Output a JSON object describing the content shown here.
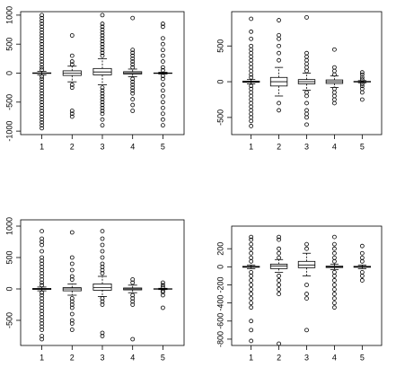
{
  "chart_data": [
    {
      "type": "boxplot",
      "categories": [
        "1",
        "2",
        "3",
        "4",
        "5"
      ],
      "ylim": [
        -1060,
        1060
      ],
      "yticks": [
        -1000,
        -500,
        0,
        500,
        1000
      ],
      "boxes": [
        {
          "whislo": -30,
          "q1": -5,
          "med": 0,
          "q3": 5,
          "whishi": 30,
          "out": [
            -950,
            -900,
            -850,
            -800,
            -750,
            -700,
            -650,
            -600,
            -550,
            -500,
            -450,
            -400,
            -350,
            -300,
            -250,
            -200,
            -150,
            -100,
            -60,
            60,
            100,
            150,
            200,
            250,
            300,
            350,
            400,
            450,
            500,
            550,
            600,
            650,
            700,
            750,
            800,
            850,
            900,
            950,
            1000
          ]
        },
        {
          "whislo": -150,
          "q1": -40,
          "med": 0,
          "q3": 40,
          "whishi": 120,
          "out": [
            -750,
            -700,
            -650,
            -250,
            -200,
            150,
            200,
            300,
            650
          ]
        },
        {
          "whislo": -200,
          "q1": -30,
          "med": 20,
          "q3": 80,
          "whishi": 250,
          "out": [
            -900,
            -800,
            -700,
            -650,
            -600,
            -550,
            -500,
            -450,
            -400,
            -350,
            -300,
            -250,
            300,
            350,
            400,
            450,
            500,
            550,
            600,
            650,
            700,
            750,
            800,
            850,
            1000
          ]
        },
        {
          "whislo": -60,
          "q1": -15,
          "med": 5,
          "q3": 25,
          "whishi": 70,
          "out": [
            -650,
            -550,
            -450,
            -350,
            -300,
            -250,
            -200,
            -150,
            -100,
            100,
            150,
            200,
            250,
            300,
            350,
            400,
            950
          ]
        },
        {
          "whislo": -15,
          "q1": -3,
          "med": 0,
          "q3": 3,
          "whishi": 15,
          "out": [
            -900,
            -800,
            -700,
            -600,
            -500,
            -400,
            -300,
            -200,
            -100,
            -50,
            50,
            100,
            200,
            300,
            400,
            500,
            600,
            800,
            850
          ]
        }
      ]
    },
    {
      "type": "boxplot",
      "categories": [
        "1",
        "2",
        "3",
        "4",
        "5"
      ],
      "ylim": [
        -740,
        980
      ],
      "yticks": [
        -500,
        0,
        500
      ],
      "boxes": [
        {
          "whislo": -30,
          "q1": -8,
          "med": 0,
          "q3": 8,
          "whishi": 30,
          "out": [
            -620,
            -550,
            -500,
            -450,
            -400,
            -350,
            -300,
            -250,
            -200,
            -150,
            -100,
            -60,
            60,
            100,
            150,
            200,
            250,
            300,
            350,
            400,
            450,
            500,
            600,
            700,
            880
          ]
        },
        {
          "whislo": -200,
          "q1": -60,
          "med": 0,
          "q3": 60,
          "whishi": 200,
          "out": [
            -400,
            -300,
            300,
            400,
            500,
            600,
            650,
            860
          ]
        },
        {
          "whislo": -120,
          "q1": -30,
          "med": 0,
          "q3": 30,
          "whishi": 120,
          "out": [
            -600,
            -500,
            -450,
            -400,
            -300,
            -200,
            -150,
            150,
            200,
            250,
            300,
            350,
            400,
            900
          ]
        },
        {
          "whislo": -80,
          "q1": -25,
          "med": 0,
          "q3": 25,
          "whishi": 80,
          "out": [
            -300,
            -250,
            -200,
            -150,
            -100,
            100,
            150,
            200,
            450
          ]
        },
        {
          "whislo": -15,
          "q1": -4,
          "med": 0,
          "q3": 4,
          "whishi": 15,
          "out": [
            -250,
            -150,
            -100,
            -60,
            -30,
            30,
            60,
            100,
            130
          ]
        }
      ]
    },
    {
      "type": "boxplot",
      "categories": [
        "1",
        "2",
        "3",
        "4",
        "5"
      ],
      "ylim": [
        -900,
        1100
      ],
      "yticks": [
        -500,
        0,
        500,
        1000
      ],
      "boxes": [
        {
          "whislo": -30,
          "q1": -8,
          "med": 0,
          "q3": 8,
          "whishi": 30,
          "out": [
            -800,
            -750,
            -650,
            -600,
            -550,
            -500,
            -450,
            -400,
            -350,
            -300,
            -250,
            -200,
            -150,
            -100,
            -60,
            60,
            100,
            150,
            200,
            250,
            300,
            350,
            400,
            450,
            500,
            600,
            700,
            750,
            800,
            920
          ]
        },
        {
          "whislo": -100,
          "q1": -30,
          "med": 0,
          "q3": 20,
          "whishi": 80,
          "out": [
            -650,
            -550,
            -500,
            -400,
            -300,
            -250,
            -200,
            -150,
            150,
            200,
            300,
            400,
            500,
            900
          ]
        },
        {
          "whislo": -120,
          "q1": -20,
          "med": 20,
          "q3": 80,
          "whishi": 200,
          "out": [
            -750,
            -700,
            -250,
            -200,
            -150,
            250,
            300,
            350,
            400,
            500,
            600,
            700,
            800,
            920
          ]
        },
        {
          "whislo": -60,
          "q1": -15,
          "med": 0,
          "q3": 15,
          "whishi": 60,
          "out": [
            -800,
            -250,
            -200,
            -150,
            -100,
            100,
            150
          ]
        },
        {
          "whislo": -10,
          "q1": -3,
          "med": 0,
          "q3": 3,
          "whishi": 10,
          "out": [
            -300,
            -100,
            -50,
            -30,
            30,
            60,
            100
          ]
        }
      ]
    },
    {
      "type": "boxplot",
      "categories": [
        "1",
        "2",
        "3",
        "4",
        "5"
      ],
      "ylim": [
        -870,
        450
      ],
      "yticks": [
        -800,
        -600,
        -400,
        -200,
        0,
        200
      ],
      "boxes": [
        {
          "whislo": -20,
          "q1": -5,
          "med": 0,
          "q3": 5,
          "whishi": 20,
          "out": [
            -820,
            -700,
            -600,
            -450,
            -400,
            -350,
            -300,
            -250,
            -200,
            -150,
            -100,
            -60,
            60,
            100,
            150,
            200,
            250,
            300,
            330
          ]
        },
        {
          "whislo": -60,
          "q1": -20,
          "med": 10,
          "q3": 30,
          "whishi": 80,
          "out": [
            -850,
            -300,
            -250,
            -200,
            -150,
            -100,
            100,
            150,
            200,
            300,
            330
          ]
        },
        {
          "whislo": -100,
          "q1": -10,
          "med": 20,
          "q3": 60,
          "whishi": 150,
          "out": [
            -700,
            -350,
            -300,
            -200,
            200,
            250
          ]
        },
        {
          "whislo": -30,
          "q1": -8,
          "med": 0,
          "q3": 8,
          "whishi": 30,
          "out": [
            -450,
            -400,
            -350,
            -300,
            -250,
            -200,
            -150,
            -100,
            -60,
            60,
            100,
            150,
            200,
            250,
            330
          ]
        },
        {
          "whislo": -20,
          "q1": -5,
          "med": 0,
          "q3": 5,
          "whishi": 20,
          "out": [
            -150,
            -100,
            -60,
            60,
            100,
            150,
            230
          ]
        }
      ]
    }
  ]
}
